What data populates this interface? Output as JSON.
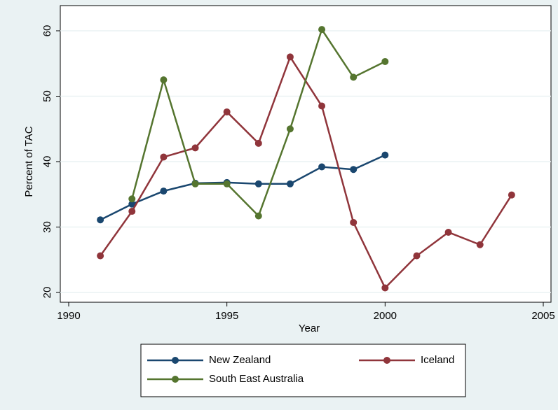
{
  "chart_data": {
    "type": "line",
    "x_label": "Year",
    "y_label": "Percent of TAC",
    "x": [
      1991,
      1992,
      1993,
      1994,
      1995,
      1996,
      1997,
      1998,
      1999,
      2000,
      2001,
      2002,
      2003,
      2004
    ],
    "series": [
      {
        "name": "New Zealand",
        "color": "#1a476f",
        "values": [
          31.1,
          33.5,
          35.5,
          36.7,
          36.8,
          36.6,
          36.6,
          39.2,
          38.8,
          41.0,
          null,
          null,
          null,
          null
        ]
      },
      {
        "name": "Iceland",
        "color": "#90353b",
        "values": [
          25.6,
          32.4,
          40.7,
          42.1,
          47.6,
          42.8,
          56.0,
          48.5,
          30.7,
          20.7,
          25.6,
          29.2,
          27.3,
          34.9
        ]
      },
      {
        "name": "South East Australia",
        "color": "#55752f",
        "values": [
          null,
          34.3,
          52.5,
          36.6,
          36.6,
          31.7,
          45.0,
          60.2,
          52.9,
          55.3,
          null,
          null,
          null,
          null
        ]
      }
    ],
    "xlim": [
      1990,
      2005
    ],
    "xticks": [
      1990,
      1995,
      2000,
      2005
    ],
    "ylim": [
      20,
      60
    ],
    "yticks": [
      20,
      30,
      40,
      50,
      60
    ],
    "grid": true
  }
}
